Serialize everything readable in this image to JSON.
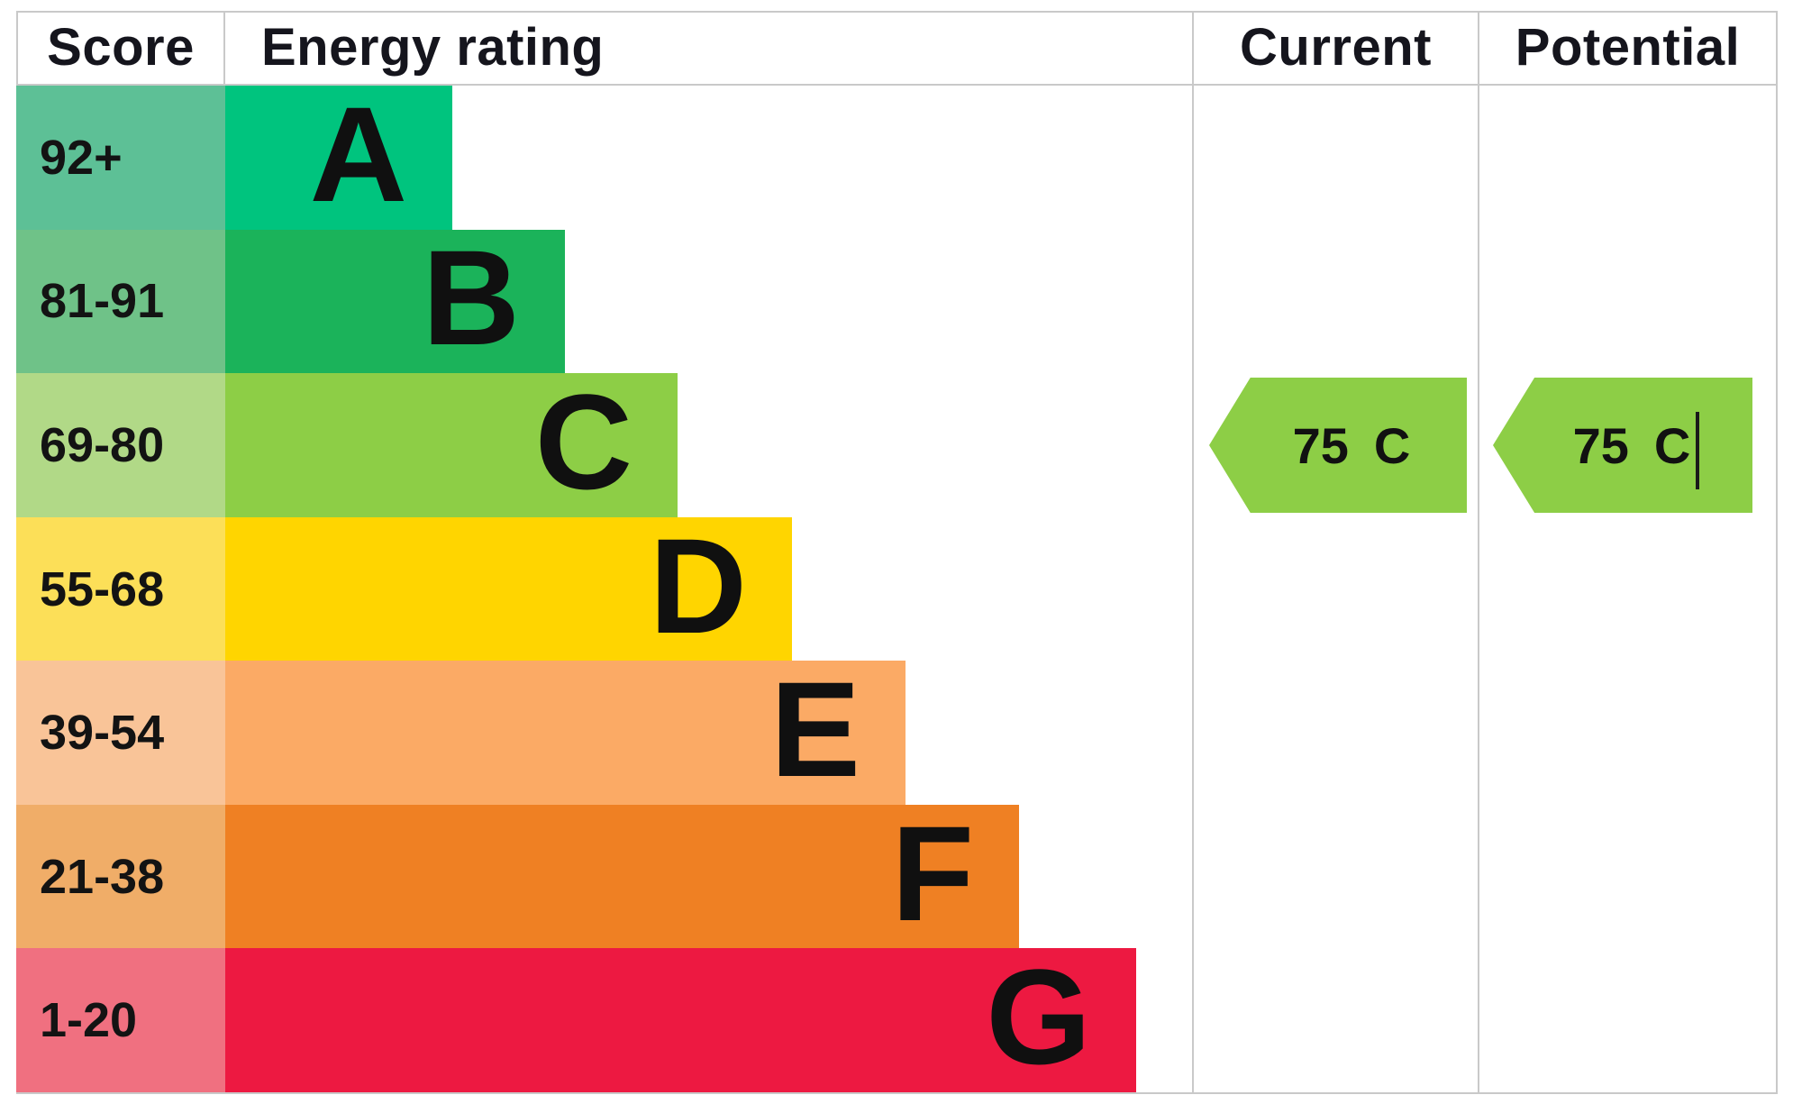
{
  "header": {
    "score": "Score",
    "energy_rating": "Energy rating",
    "current": "Current",
    "potential": "Potential"
  },
  "colors": {
    "grid_line": "#c9c9c9",
    "text": "#131313",
    "arrow_green": "#8dce46"
  },
  "chart_data": {
    "type": "bar",
    "description": "EPC energy efficiency rating scale with current and potential ratings",
    "categories": [
      "A",
      "B",
      "C",
      "D",
      "E",
      "F",
      "G"
    ],
    "bands": [
      {
        "grade": "A",
        "score_range": "92+",
        "band_color": "#00c47e",
        "score_tint": "#5dc096",
        "bar_fraction": 0.235
      },
      {
        "grade": "B",
        "score_range": "81-91",
        "band_color": "#1bb35a",
        "score_tint": "#6fc288",
        "bar_fraction": 0.351
      },
      {
        "grade": "C",
        "score_range": "69-80",
        "band_color": "#8dce46",
        "score_tint": "#b1d987",
        "bar_fraction": 0.468
      },
      {
        "grade": "D",
        "score_range": "55-68",
        "band_color": "#ffd500",
        "score_tint": "#fcdf58",
        "bar_fraction": 0.586
      },
      {
        "grade": "E",
        "score_range": "39-54",
        "band_color": "#fbaa65",
        "score_tint": "#f9c498",
        "bar_fraction": 0.704
      },
      {
        "grade": "F",
        "score_range": "21-38",
        "band_color": "#ef8023",
        "score_tint": "#f0ad68",
        "bar_fraction": 0.821
      },
      {
        "grade": "G",
        "score_range": "1-20",
        "band_color": "#ed1941",
        "score_tint": "#f07080",
        "bar_fraction": 0.942
      }
    ],
    "current": {
      "value": "75",
      "grade": "C",
      "arrow_color": "#8dce46",
      "show_caret": false
    },
    "potential": {
      "value": "75",
      "grade": "C",
      "arrow_color": "#8dce46",
      "show_caret": true
    }
  }
}
